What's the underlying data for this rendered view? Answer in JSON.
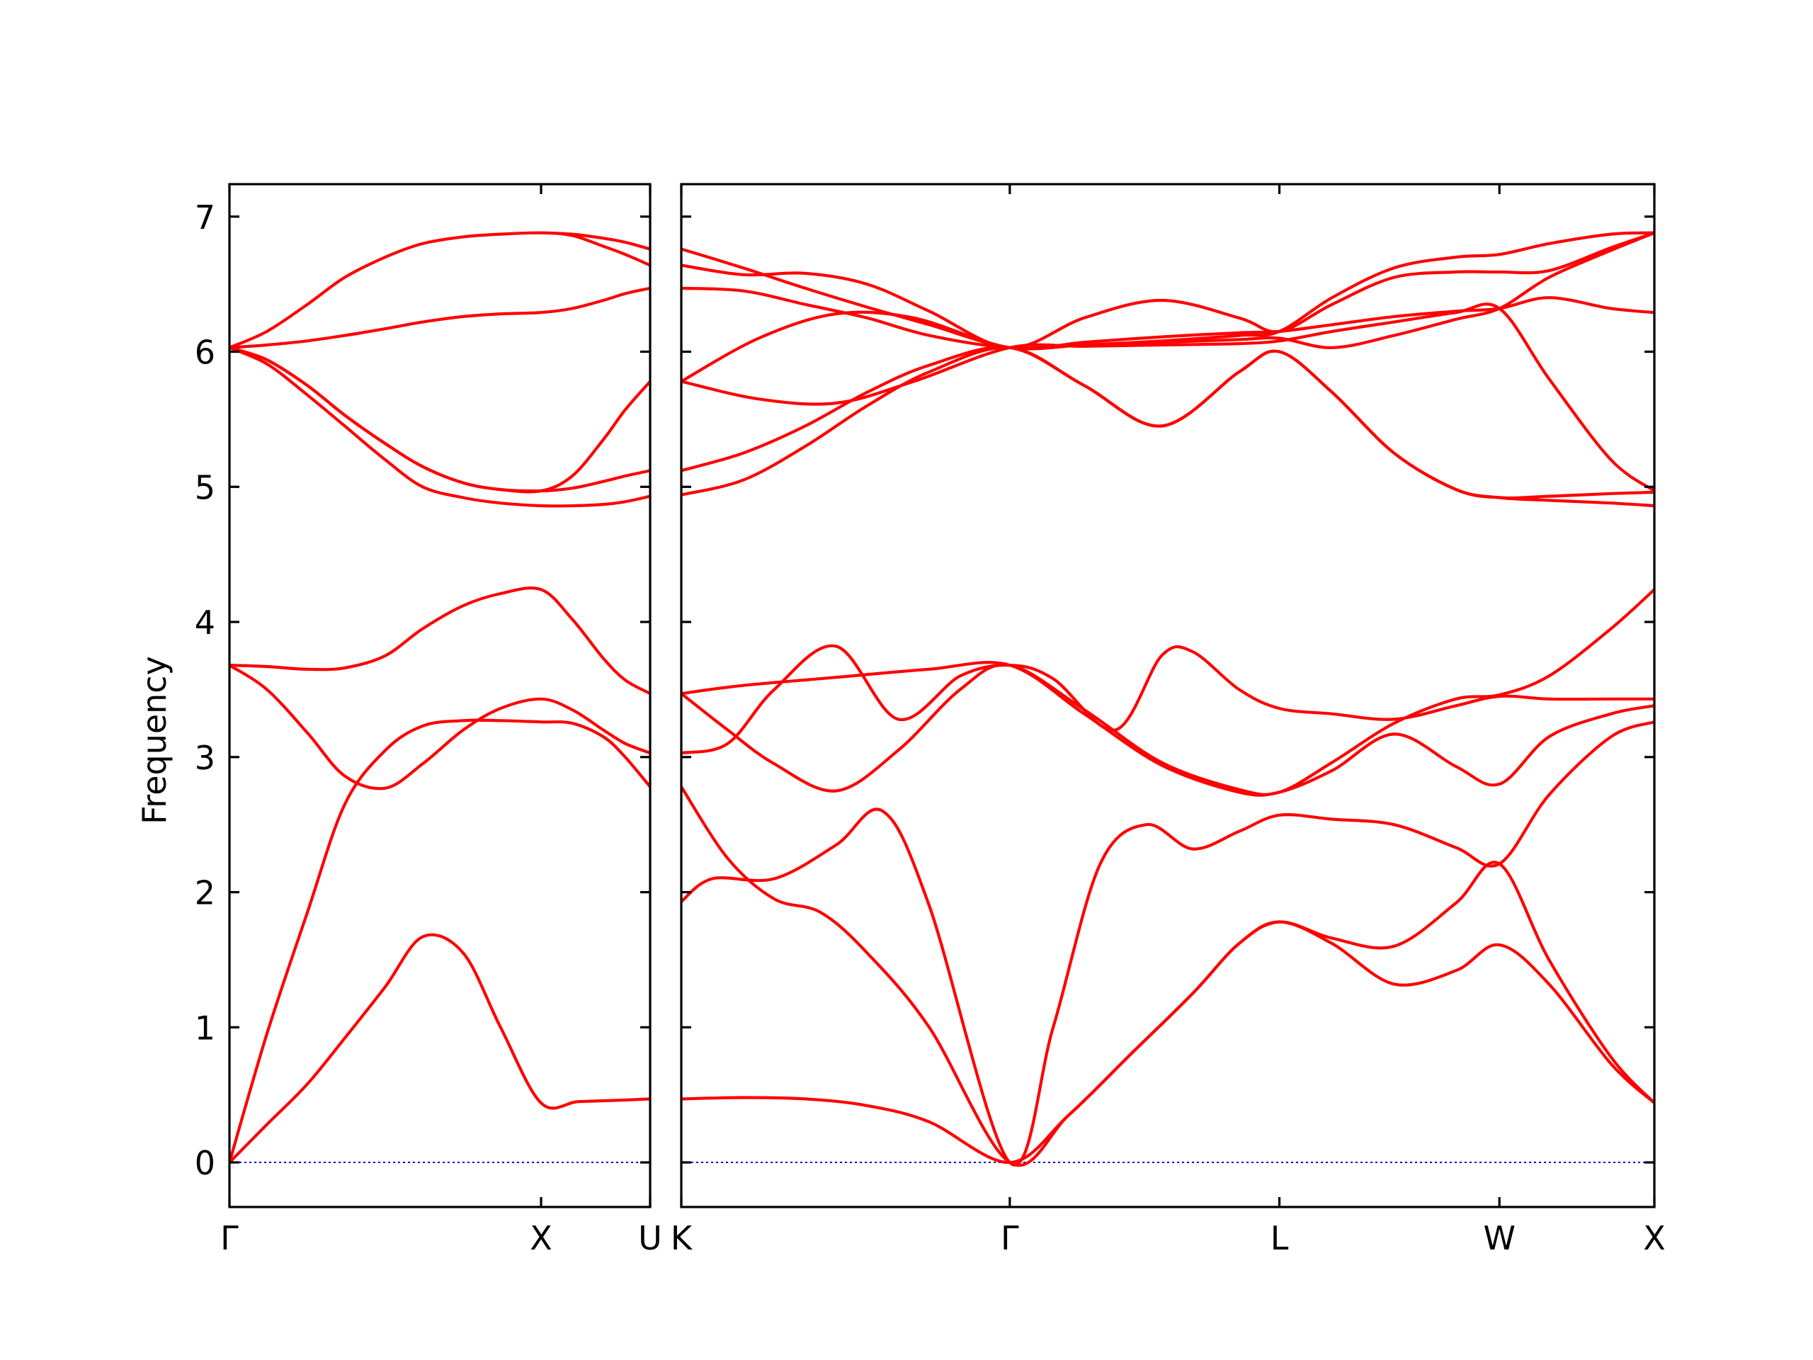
{
  "chart_data": {
    "type": "line",
    "ylabel": "Frequency",
    "xlabel": "",
    "ylim": [
      -0.33,
      7.24
    ],
    "yticks": [
      0,
      1,
      2,
      3,
      4,
      5,
      6,
      7
    ],
    "zero_line": {
      "y": 0,
      "color": "#0000cc",
      "style": "dotted"
    },
    "band_color": "#ff0000",
    "panels": [
      {
        "name": "panel-1",
        "xlim": [
          0,
          1.35
        ],
        "ticks": [
          {
            "x": 0,
            "label": "Γ"
          },
          {
            "x": 1.0,
            "label": "X"
          },
          {
            "x": 1.35,
            "label": "U"
          }
        ],
        "series": [
          {
            "x": [
              0,
              0.12,
              0.25,
              0.37,
              0.5,
              0.62,
              0.75,
              0.87,
              1.0,
              1.12,
              1.25,
              1.35
            ],
            "values": [
              0,
              0.28,
              0.58,
              0.92,
              1.3,
              1.67,
              1.55,
              1.0,
              0.44,
              0.45,
              0.46,
              0.47
            ]
          },
          {
            "x": [
              0,
              0.12,
              0.25,
              0.37,
              0.5,
              0.62,
              0.75,
              0.87,
              1.0,
              1.1,
              1.2,
              1.27,
              1.35
            ],
            "values": [
              0,
              0.95,
              1.85,
              2.65,
              3.05,
              3.23,
              3.27,
              3.27,
              3.26,
              3.25,
              3.15,
              3.0,
              2.78
            ]
          },
          {
            "x": [
              0,
              0.12,
              0.25,
              0.37,
              0.5,
              0.62,
              0.75,
              0.87,
              1.0,
              1.1,
              1.2,
              1.27,
              1.35
            ],
            "values": [
              3.68,
              3.5,
              3.18,
              2.86,
              2.77,
              2.95,
              3.2,
              3.36,
              3.43,
              3.35,
              3.2,
              3.1,
              3.03
            ]
          },
          {
            "x": [
              0,
              0.12,
              0.25,
              0.37,
              0.5,
              0.62,
              0.75,
              0.87,
              1.0,
              1.1,
              1.2,
              1.27,
              1.35
            ],
            "values": [
              3.68,
              3.67,
              3.65,
              3.66,
              3.75,
              3.95,
              4.12,
              4.21,
              4.24,
              4.02,
              3.73,
              3.57,
              3.47
            ]
          },
          {
            "x": [
              0,
              0.12,
              0.25,
              0.37,
              0.5,
              0.62,
              0.75,
              0.87,
              1.0,
              1.1,
              1.2,
              1.27,
              1.35
            ],
            "values": [
              6.03,
              5.91,
              5.68,
              5.45,
              5.2,
              5.0,
              4.92,
              4.88,
              4.86,
              4.86,
              4.87,
              4.89,
              4.93
            ]
          },
          {
            "x": [
              0,
              0.12,
              0.25,
              0.37,
              0.5,
              0.62,
              0.75,
              0.87,
              1.0,
              1.1,
              1.2,
              1.27,
              1.35
            ],
            "values": [
              6.03,
              5.94,
              5.75,
              5.53,
              5.32,
              5.15,
              5.03,
              4.98,
              4.97,
              4.99,
              5.04,
              5.08,
              5.12
            ]
          },
          {
            "x": [
              0,
              0.12,
              0.25,
              0.37,
              0.5,
              0.62,
              0.75,
              0.87,
              1.0,
              1.1,
              1.2,
              1.27,
              1.35
            ],
            "values": [
              6.03,
              5.94,
              5.75,
              5.53,
              5.32,
              5.15,
              5.03,
              4.98,
              4.97,
              5.08,
              5.35,
              5.57,
              5.78
            ]
          },
          {
            "x": [
              0,
              0.12,
              0.25,
              0.37,
              0.5,
              0.62,
              0.75,
              0.87,
              1.0,
              1.1,
              1.2,
              1.27,
              1.35
            ],
            "values": [
              6.03,
              6.05,
              6.08,
              6.12,
              6.17,
              6.22,
              6.26,
              6.28,
              6.29,
              6.32,
              6.38,
              6.43,
              6.47
            ]
          },
          {
            "x": [
              0,
              0.12,
              0.25,
              0.37,
              0.5,
              0.62,
              0.75,
              0.87,
              1.0,
              1.1,
              1.2,
              1.27,
              1.35
            ],
            "values": [
              6.03,
              6.15,
              6.35,
              6.55,
              6.7,
              6.8,
              6.85,
              6.87,
              6.88,
              6.86,
              6.78,
              6.72,
              6.64
            ]
          },
          {
            "x": [
              1.0,
              1.1,
              1.2,
              1.27,
              1.35
            ],
            "values": [
              6.88,
              6.87,
              6.84,
              6.81,
              6.76
            ]
          }
        ]
      },
      {
        "name": "panel-2",
        "xlim": [
          0,
          3.14
        ],
        "ticks": [
          {
            "x": 0,
            "label": "K"
          },
          {
            "x": 1.06,
            "label": "Γ"
          },
          {
            "x": 1.93,
            "label": "L"
          },
          {
            "x": 2.64,
            "label": "W"
          },
          {
            "x": 3.14,
            "label": "X"
          }
        ],
        "series": [
          {
            "x": [
              0,
              0.2,
              0.4,
              0.6,
              0.8,
              1.06,
              1.25,
              1.45,
              1.65,
              1.8,
              1.93,
              2.1,
              2.3,
              2.5,
              2.64,
              2.8,
              3.0,
              3.14
            ],
            "values": [
              0.47,
              0.48,
              0.47,
              0.42,
              0.3,
              0.0,
              0.35,
              0.8,
              1.25,
              1.62,
              1.78,
              1.62,
              1.32,
              1.42,
              1.61,
              1.32,
              0.73,
              0.44
            ]
          },
          {
            "x": [
              0,
              0.15,
              0.3,
              0.45,
              0.6,
              0.8,
              1.06,
              1.25,
              1.45,
              1.65,
              1.8,
              1.93,
              2.1,
              2.3,
              2.5,
              2.64,
              2.8,
              3.0,
              3.14
            ],
            "values": [
              2.78,
              2.25,
              1.95,
              1.85,
              1.55,
              1.0,
              0.0,
              0.35,
              0.8,
              1.25,
              1.62,
              1.78,
              1.66,
              1.6,
              1.92,
              2.21,
              1.5,
              0.78,
              0.44
            ]
          },
          {
            "x": [
              0,
              0.1,
              0.3,
              0.5,
              0.65,
              0.8,
              1.06,
              1.2,
              1.35,
              1.5,
              1.65,
              1.8,
              1.93,
              2.1,
              2.3,
              2.5,
              2.64,
              2.8,
              3.0,
              3.14
            ],
            "values": [
              1.93,
              2.1,
              2.1,
              2.35,
              2.6,
              1.9,
              0.0,
              1.0,
              2.2,
              2.5,
              2.32,
              2.45,
              2.57,
              2.54,
              2.5,
              2.33,
              2.21,
              2.72,
              3.15,
              3.26
            ]
          },
          {
            "x": [
              0,
              0.15,
              0.3,
              0.5,
              0.7,
              0.9,
              1.06,
              1.2,
              1.4,
              1.55,
              1.65,
              1.8,
              1.93,
              2.1,
              2.3,
              2.5,
              2.64,
              2.8,
              3.0,
              3.14
            ],
            "values": [
              3.03,
              3.1,
              3.5,
              3.82,
              3.28,
              3.6,
              3.68,
              3.58,
              3.2,
              3.75,
              3.78,
              3.5,
              3.36,
              3.32,
              3.28,
              3.38,
              3.45,
              3.43,
              3.43,
              3.43
            ]
          },
          {
            "x": [
              0,
              0.2,
              0.5,
              0.8,
              1.06,
              1.3,
              1.55,
              1.8,
              1.93,
              2.1,
              2.3,
              2.5,
              2.64,
              2.8,
              3.0,
              3.14
            ],
            "values": [
              3.47,
              3.53,
              3.59,
              3.65,
              3.68,
              3.32,
              2.94,
              2.74,
              2.74,
              2.9,
              3.17,
              2.93,
              2.8,
              3.15,
              3.32,
              3.38
            ]
          },
          {
            "x": [
              0,
              0.15,
              0.3,
              0.5,
              0.7,
              0.9,
              1.06,
              1.3,
              1.55,
              1.8,
              1.93,
              2.1,
              2.3,
              2.5,
              2.64,
              2.8,
              3.0,
              3.14
            ],
            "values": [
              3.47,
              3.2,
              2.95,
              2.75,
              3.05,
              3.5,
              3.68,
              3.35,
              2.96,
              2.76,
              2.74,
              2.96,
              3.25,
              3.43,
              3.46,
              3.6,
              3.95,
              4.24
            ]
          },
          {
            "x": [
              0,
              0.2,
              0.4,
              0.6,
              0.8,
              1.06,
              1.3,
              1.55,
              1.8,
              1.93,
              2.1,
              2.3,
              2.5,
              2.64,
              2.8,
              3.0,
              3.14
            ],
            "values": [
              4.94,
              5.05,
              5.3,
              5.6,
              5.85,
              6.03,
              5.75,
              5.45,
              5.85,
              6.0,
              5.7,
              5.25,
              4.98,
              4.92,
              4.9,
              4.88,
              4.86
            ]
          },
          {
            "x": [
              0,
              0.2,
              0.4,
              0.6,
              0.8,
              1.06,
              1.3,
              1.55,
              1.8,
              1.93,
              2.1,
              2.3,
              2.5,
              2.64,
              2.8,
              3.0,
              3.14
            ],
            "values": [
              5.12,
              5.25,
              5.45,
              5.7,
              5.9,
              6.03,
              5.75,
              5.45,
              5.85,
              6.0,
              5.7,
              5.25,
              4.98,
              4.92,
              4.93,
              4.95,
              4.96
            ]
          },
          {
            "x": [
              0,
              0.25,
              0.5,
              0.75,
              1.06,
              1.3,
              1.55,
              1.8,
              1.93,
              2.1,
              2.3,
              2.5,
              2.64,
              2.8,
              3.0,
              3.14
            ],
            "values": [
              5.78,
              5.65,
              5.62,
              5.78,
              6.03,
              6.04,
              6.05,
              6.06,
              6.08,
              6.15,
              6.22,
              6.29,
              6.32,
              5.8,
              5.2,
              4.97
            ]
          },
          {
            "x": [
              0,
              0.2,
              0.4,
              0.6,
              0.8,
              1.06,
              1.3,
              1.55,
              1.8,
              1.93,
              2.1,
              2.3,
              2.5,
              2.64,
              2.8,
              3.0,
              3.14
            ],
            "values": [
              6.47,
              6.45,
              6.35,
              6.25,
              6.12,
              6.03,
              6.05,
              6.07,
              6.09,
              6.1,
              6.03,
              6.12,
              6.24,
              6.32,
              6.55,
              6.75,
              6.88
            ]
          },
          {
            "x": [
              0,
              0.25,
              0.5,
              0.75,
              1.06,
              1.3,
              1.55,
              1.8,
              1.93,
              2.1,
              2.3,
              2.5,
              2.64,
              2.8,
              3.0,
              3.14
            ],
            "values": [
              5.78,
              6.1,
              6.28,
              6.25,
              6.03,
              6.07,
              6.11,
              6.14,
              6.15,
              6.2,
              6.26,
              6.3,
              6.32,
              6.4,
              6.32,
              6.29
            ]
          },
          {
            "x": [
              0,
              0.2,
              0.4,
              0.6,
              0.8,
              1.06,
              1.3,
              1.55,
              1.8,
              1.93,
              2.1,
              2.3,
              2.5,
              2.64,
              2.8,
              3.0,
              3.14
            ],
            "values": [
              6.64,
              6.57,
              6.58,
              6.5,
              6.3,
              6.03,
              6.25,
              6.38,
              6.25,
              6.15,
              6.35,
              6.55,
              6.59,
              6.59,
              6.6,
              6.77,
              6.88
            ]
          },
          {
            "x": [
              0,
              0.2,
              0.4,
              0.6,
              0.8,
              1.06,
              1.3,
              1.55,
              1.8,
              1.93,
              2.1,
              2.3,
              2.5,
              2.64,
              2.8,
              3.0,
              3.14
            ],
            "values": [
              6.76,
              6.62,
              6.47,
              6.33,
              6.2,
              6.03,
              6.05,
              6.08,
              6.12,
              6.15,
              6.4,
              6.62,
              6.7,
              6.72,
              6.8,
              6.87,
              6.88
            ]
          }
        ]
      }
    ]
  }
}
